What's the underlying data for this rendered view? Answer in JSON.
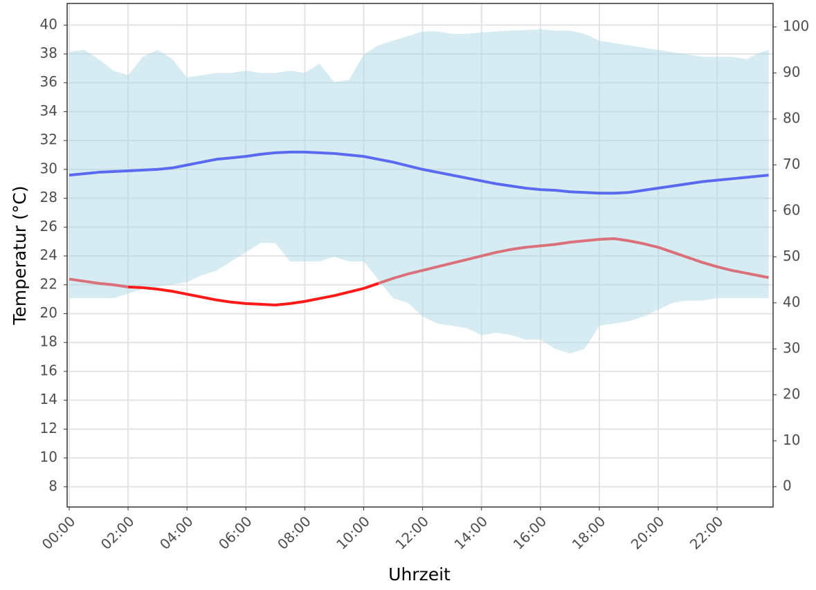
{
  "chart_data": {
    "type": "line",
    "x_label": "Uhrzeit",
    "y_label": "Temperatur (°C)",
    "x": [
      0,
      0.5,
      1,
      1.5,
      2,
      2.5,
      3,
      3.5,
      4,
      4.5,
      5,
      5.5,
      6,
      6.5,
      7,
      7.5,
      8,
      8.5,
      9,
      9.5,
      10,
      10.5,
      11,
      11.5,
      12,
      12.5,
      13,
      13.5,
      14,
      14.5,
      15,
      15.5,
      16,
      16.5,
      17,
      17.5,
      18,
      18.5,
      19,
      19.5,
      20,
      20.5,
      21,
      21.5,
      22,
      22.5,
      23,
      23.5,
      23.75
    ],
    "xlim": [
      -0.07,
      23.9
    ],
    "xticks": [
      {
        "value": 0,
        "label": "00:00"
      },
      {
        "value": 2,
        "label": "02:00"
      },
      {
        "value": 4,
        "label": "04:00"
      },
      {
        "value": 6,
        "label": "06:00"
      },
      {
        "value": 8,
        "label": "08:00"
      },
      {
        "value": 10,
        "label": "10:00"
      },
      {
        "value": 12,
        "label": "12:00"
      },
      {
        "value": 14,
        "label": "14:00"
      },
      {
        "value": 16,
        "label": "16:00"
      },
      {
        "value": 18,
        "label": "18:00"
      },
      {
        "value": 20,
        "label": "20:00"
      },
      {
        "value": 22,
        "label": "22:00"
      }
    ],
    "ylim": [
      6.6,
      41.5
    ],
    "yticks": [
      8,
      10,
      12,
      14,
      16,
      18,
      20,
      22,
      24,
      26,
      28,
      30,
      32,
      34,
      36,
      38,
      40
    ],
    "y2lim": [
      -4.4,
      105.1
    ],
    "y2ticks": [
      0,
      10,
      20,
      30,
      40,
      50,
      60,
      70,
      80,
      90,
      100
    ],
    "grid": true,
    "series": [
      {
        "type": "band",
        "axis": "y2",
        "color": "#add8e6",
        "values": [
          94.6,
          95,
          93,
          90.5,
          89.5,
          93.5,
          95,
          93,
          89,
          89.5,
          90,
          90,
          90.5,
          90,
          90,
          90.5,
          90,
          92,
          88,
          88.5,
          94,
          96,
          97,
          98,
          99,
          99,
          98.5,
          98.5,
          98.8,
          99,
          99.2,
          99.3,
          99.5,
          99.2,
          99.2,
          98.5,
          97,
          96.5,
          96,
          95.5,
          95,
          94.5,
          94,
          93.5,
          93.5,
          93.5,
          93,
          94.5,
          95
        ],
        "lower": [
          41,
          41,
          41,
          41,
          42,
          43,
          43.5,
          44,
          44.5,
          46,
          47,
          49,
          51,
          53,
          53,
          49,
          49,
          49,
          50,
          49,
          49,
          45,
          41,
          40,
          37,
          35.5,
          35,
          34.5,
          33,
          33.5,
          33,
          32,
          32,
          30,
          29,
          30,
          35,
          35.5,
          36,
          37,
          38.5,
          40,
          40.5,
          40.5,
          41,
          41,
          41,
          41,
          41
        ]
      },
      {
        "color": "#5a6af0",
        "values": [
          29.6,
          29.7,
          29.8,
          29.85,
          29.9,
          29.95,
          30.0,
          30.1,
          30.3,
          30.5,
          30.7,
          30.8,
          30.9,
          31.05,
          31.15,
          31.2,
          31.2,
          31.15,
          31.1,
          31.0,
          30.9,
          30.7,
          30.5,
          30.25,
          30.0,
          29.8,
          29.6,
          29.4,
          29.2,
          29.0,
          28.85,
          28.7,
          28.6,
          28.55,
          28.45,
          28.4,
          28.35,
          28.35,
          28.4,
          28.55,
          28.7,
          28.85,
          29.0,
          29.15,
          29.25,
          29.35,
          29.45,
          29.55,
          29.6
        ]
      },
      {
        "color": "#d9707a",
        "values": [
          22.4,
          22.25,
          22.1,
          22.0,
          21.85,
          null,
          null,
          null,
          null,
          null,
          null,
          null,
          null,
          null,
          null,
          null,
          null,
          null,
          null,
          null,
          null,
          22.1,
          22.45,
          22.75,
          23.0,
          23.25,
          23.5,
          23.75,
          24.0,
          24.25,
          24.45,
          24.6,
          24.7,
          24.8,
          24.95,
          25.05,
          25.15,
          25.2,
          25.05,
          24.85,
          24.6,
          24.25,
          23.9,
          23.55,
          23.25,
          23.0,
          22.8,
          22.6,
          22.5
        ]
      },
      {
        "color": "#ff1a1a",
        "values": [
          null,
          null,
          null,
          null,
          21.85,
          21.8,
          21.7,
          21.55,
          21.35,
          21.15,
          20.95,
          20.8,
          20.7,
          20.65,
          20.6,
          20.7,
          20.85,
          21.05,
          21.25,
          21.5,
          21.75,
          22.1,
          null,
          null,
          null,
          null,
          null,
          null,
          null,
          null,
          null,
          null,
          null,
          null,
          null,
          null,
          null,
          null,
          null,
          null,
          null,
          null,
          null,
          null,
          null,
          null,
          null,
          null,
          null
        ]
      }
    ]
  }
}
